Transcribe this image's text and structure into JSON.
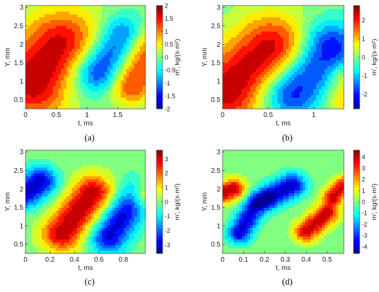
{
  "colormap": [
    "#00008f",
    "#0000ff",
    "#0080ff",
    "#00ffff",
    "#80ff80",
    "#ffff00",
    "#ff8000",
    "#ff0000",
    "#800000"
  ],
  "panels": [
    {
      "label": "a",
      "caption": "(a)",
      "x_unit": "t, ms",
      "y_unit": "Y, mm",
      "cb_label": "m', kg/(s·m²)",
      "chart_data": {
        "type": "heatmap",
        "xlim": [
          0,
          1.95
        ],
        "ylim": [
          0.25,
          3.05
        ],
        "clim": [
          -2,
          2
        ],
        "xticks": [
          {
            "v": 0,
            "t": "0"
          },
          {
            "v": 0.5,
            "t": "0.5"
          },
          {
            "v": 1,
            "t": "1"
          },
          {
            "v": 1.5,
            "t": "1.5"
          }
        ],
        "yticks": [
          {
            "v": 0.5,
            "t": "0.5"
          },
          {
            "v": 1,
            "t": "1"
          },
          {
            "v": 1.5,
            "t": "1.5"
          },
          {
            "v": 2,
            "t": "2"
          },
          {
            "v": 2.5,
            "t": "2.5"
          },
          {
            "v": 3,
            "t": "3"
          }
        ],
        "cticks": [
          {
            "v": -2,
            "t": "-2"
          },
          {
            "v": -1.5,
            "t": "-1.5"
          },
          {
            "v": -1,
            "t": "-1"
          },
          {
            "v": -0.5,
            "t": "-0.5"
          },
          {
            "v": 0,
            "t": "0"
          },
          {
            "v": 0.5,
            "t": "0.5"
          },
          {
            "v": 1,
            "t": "1"
          },
          {
            "v": 1.5,
            "t": "1.5"
          },
          {
            "v": 2,
            "t": "2"
          }
        ],
        "blobs": [
          {
            "x0": 0.15,
            "y0": 1.0,
            "x1": 0.6,
            "y1": 1.9,
            "amp": 1.9,
            "sig": 0.25
          },
          {
            "x0": 1.2,
            "y0": 1.3,
            "x1": 1.6,
            "y1": 2.2,
            "amp": -1.5,
            "sig": 0.14
          },
          {
            "x0": 1.72,
            "y0": 0.9,
            "x1": 1.95,
            "y1": 2.0,
            "amp": 1.4,
            "sig": 0.13
          },
          {
            "x0": 0.9,
            "y0": 1.0,
            "x1": 1.0,
            "y1": 1.6,
            "amp": -0.5,
            "sig": 0.18
          }
        ]
      }
    },
    {
      "label": "b",
      "caption": "(b)",
      "x_unit": "t, ms",
      "y_unit": "Y, mm",
      "cb_label": "m', kg/(s·m²)",
      "chart_data": {
        "type": "heatmap",
        "xlim": [
          0,
          1.33
        ],
        "ylim": [
          0.25,
          3.05
        ],
        "clim": [
          -2.8,
          2.8
        ],
        "xticks": [
          {
            "v": 0,
            "t": "0"
          },
          {
            "v": 0.5,
            "t": "0.5"
          },
          {
            "v": 1,
            "t": "1"
          }
        ],
        "yticks": [
          {
            "v": 0.5,
            "t": "0.5"
          },
          {
            "v": 1,
            "t": "1"
          },
          {
            "v": 1.5,
            "t": "1.5"
          },
          {
            "v": 2,
            "t": "2"
          },
          {
            "v": 2.5,
            "t": "2.5"
          },
          {
            "v": 3,
            "t": "3"
          }
        ],
        "cticks": [
          {
            "v": -2,
            "t": "-2"
          },
          {
            "v": -1,
            "t": "-1"
          },
          {
            "v": 0,
            "t": "0"
          },
          {
            "v": 1,
            "t": "1"
          },
          {
            "v": 2,
            "t": "2"
          }
        ],
        "blobs": [
          {
            "x0": 0.05,
            "y0": 0.75,
            "x1": 0.55,
            "y1": 1.85,
            "amp": 2.6,
            "sig": 0.23
          },
          {
            "x0": 0.75,
            "y0": 0.75,
            "x1": 1.15,
            "y1": 1.9,
            "amp": -2.4,
            "sig": 0.18
          },
          {
            "x0": 1.3,
            "y0": 0.5,
            "x1": 1.33,
            "y1": 1.1,
            "amp": 1.0,
            "sig": 0.1
          }
        ]
      }
    },
    {
      "label": "c",
      "caption": "(c)",
      "x_unit": "t, ms",
      "y_unit": "Y, mm",
      "cb_label": "m', kg/(s·m²)",
      "chart_data": {
        "type": "heatmap",
        "xlim": [
          0,
          0.98
        ],
        "ylim": [
          0.25,
          3.05
        ],
        "clim": [
          -3.6,
          3.6
        ],
        "xticks": [
          {
            "v": 0,
            "t": "0"
          },
          {
            "v": 0.2,
            "t": "0.2"
          },
          {
            "v": 0.4,
            "t": "0.4"
          },
          {
            "v": 0.6,
            "t": "0.6"
          },
          {
            "v": 0.8,
            "t": "0.8"
          }
        ],
        "yticks": [
          {
            "v": 0.5,
            "t": "0.5"
          },
          {
            "v": 1,
            "t": "1"
          },
          {
            "v": 1.5,
            "t": "1.5"
          },
          {
            "v": 2,
            "t": "2"
          },
          {
            "v": 2.5,
            "t": "2.5"
          },
          {
            "v": 3,
            "t": "3"
          }
        ],
        "cticks": [
          {
            "v": -3,
            "t": "-3"
          },
          {
            "v": -2,
            "t": "-2"
          },
          {
            "v": -1,
            "t": "-1"
          },
          {
            "v": 0,
            "t": "0"
          },
          {
            "v": 1,
            "t": "1"
          },
          {
            "v": 2,
            "t": "2"
          },
          {
            "v": 3,
            "t": "3"
          }
        ],
        "blobs": [
          {
            "x0": 0.0,
            "y0": 1.9,
            "x1": 0.12,
            "y1": 2.2,
            "amp": -3.2,
            "sig": 0.1
          },
          {
            "x0": 0.3,
            "y0": 0.8,
            "x1": 0.55,
            "y1": 1.9,
            "amp": 3.3,
            "sig": 0.12
          },
          {
            "x0": 0.68,
            "y0": 0.7,
            "x1": 0.92,
            "y1": 1.9,
            "amp": -3.0,
            "sig": 0.11
          },
          {
            "x0": 0.98,
            "y0": 1.9,
            "x1": 0.98,
            "y1": 1.9,
            "amp": 3.0,
            "sig": 0.1
          }
        ]
      }
    },
    {
      "label": "d",
      "caption": "(d)",
      "x_unit": "t, ms",
      "y_unit": "Y, mm",
      "cb_label": "m', kg/(s·m²)",
      "chart_data": {
        "type": "heatmap",
        "xlim": [
          0,
          0.58
        ],
        "ylim": [
          0.25,
          3.05
        ],
        "clim": [
          -4.6,
          4.6
        ],
        "xticks": [
          {
            "v": 0,
            "t": "0"
          },
          {
            "v": 0.1,
            "t": "0.1"
          },
          {
            "v": 0.2,
            "t": "0.2"
          },
          {
            "v": 0.3,
            "t": "0.3"
          },
          {
            "v": 0.4,
            "t": "0.4"
          },
          {
            "v": 0.5,
            "t": "0.5"
          }
        ],
        "yticks": [
          {
            "v": 0.5,
            "t": "0.5"
          },
          {
            "v": 1,
            "t": "1"
          },
          {
            "v": 1.5,
            "t": "1.5"
          },
          {
            "v": 2,
            "t": "2"
          },
          {
            "v": 2.5,
            "t": "2.5"
          },
          {
            "v": 3,
            "t": "3"
          }
        ],
        "cticks": [
          {
            "v": -4,
            "t": "-4"
          },
          {
            "v": -3,
            "t": "-3"
          },
          {
            "v": -2,
            "t": "-2"
          },
          {
            "v": -1,
            "t": "-1"
          },
          {
            "v": 0,
            "t": "0"
          },
          {
            "v": 1,
            "t": "1"
          },
          {
            "v": 2,
            "t": "2"
          },
          {
            "v": 3,
            "t": "3"
          },
          {
            "v": 4,
            "t": "4"
          }
        ],
        "blobs": [
          {
            "x0": 0.0,
            "y0": 1.9,
            "x1": 0.05,
            "y1": 2.0,
            "amp": 4.2,
            "sig": 0.07
          },
          {
            "x0": 0.08,
            "y0": 0.8,
            "x1": 0.16,
            "y1": 1.6,
            "amp": -3.8,
            "sig": 0.07
          },
          {
            "x0": 0.23,
            "y0": 1.8,
            "x1": 0.33,
            "y1": 2.1,
            "amp": -4.2,
            "sig": 0.08
          },
          {
            "x0": 0.4,
            "y0": 0.85,
            "x1": 0.5,
            "y1": 1.35,
            "amp": 4.0,
            "sig": 0.07
          },
          {
            "x0": 0.53,
            "y0": 1.8,
            "x1": 0.58,
            "y1": 2.1,
            "amp": 3.8,
            "sig": 0.06
          }
        ]
      }
    }
  ]
}
